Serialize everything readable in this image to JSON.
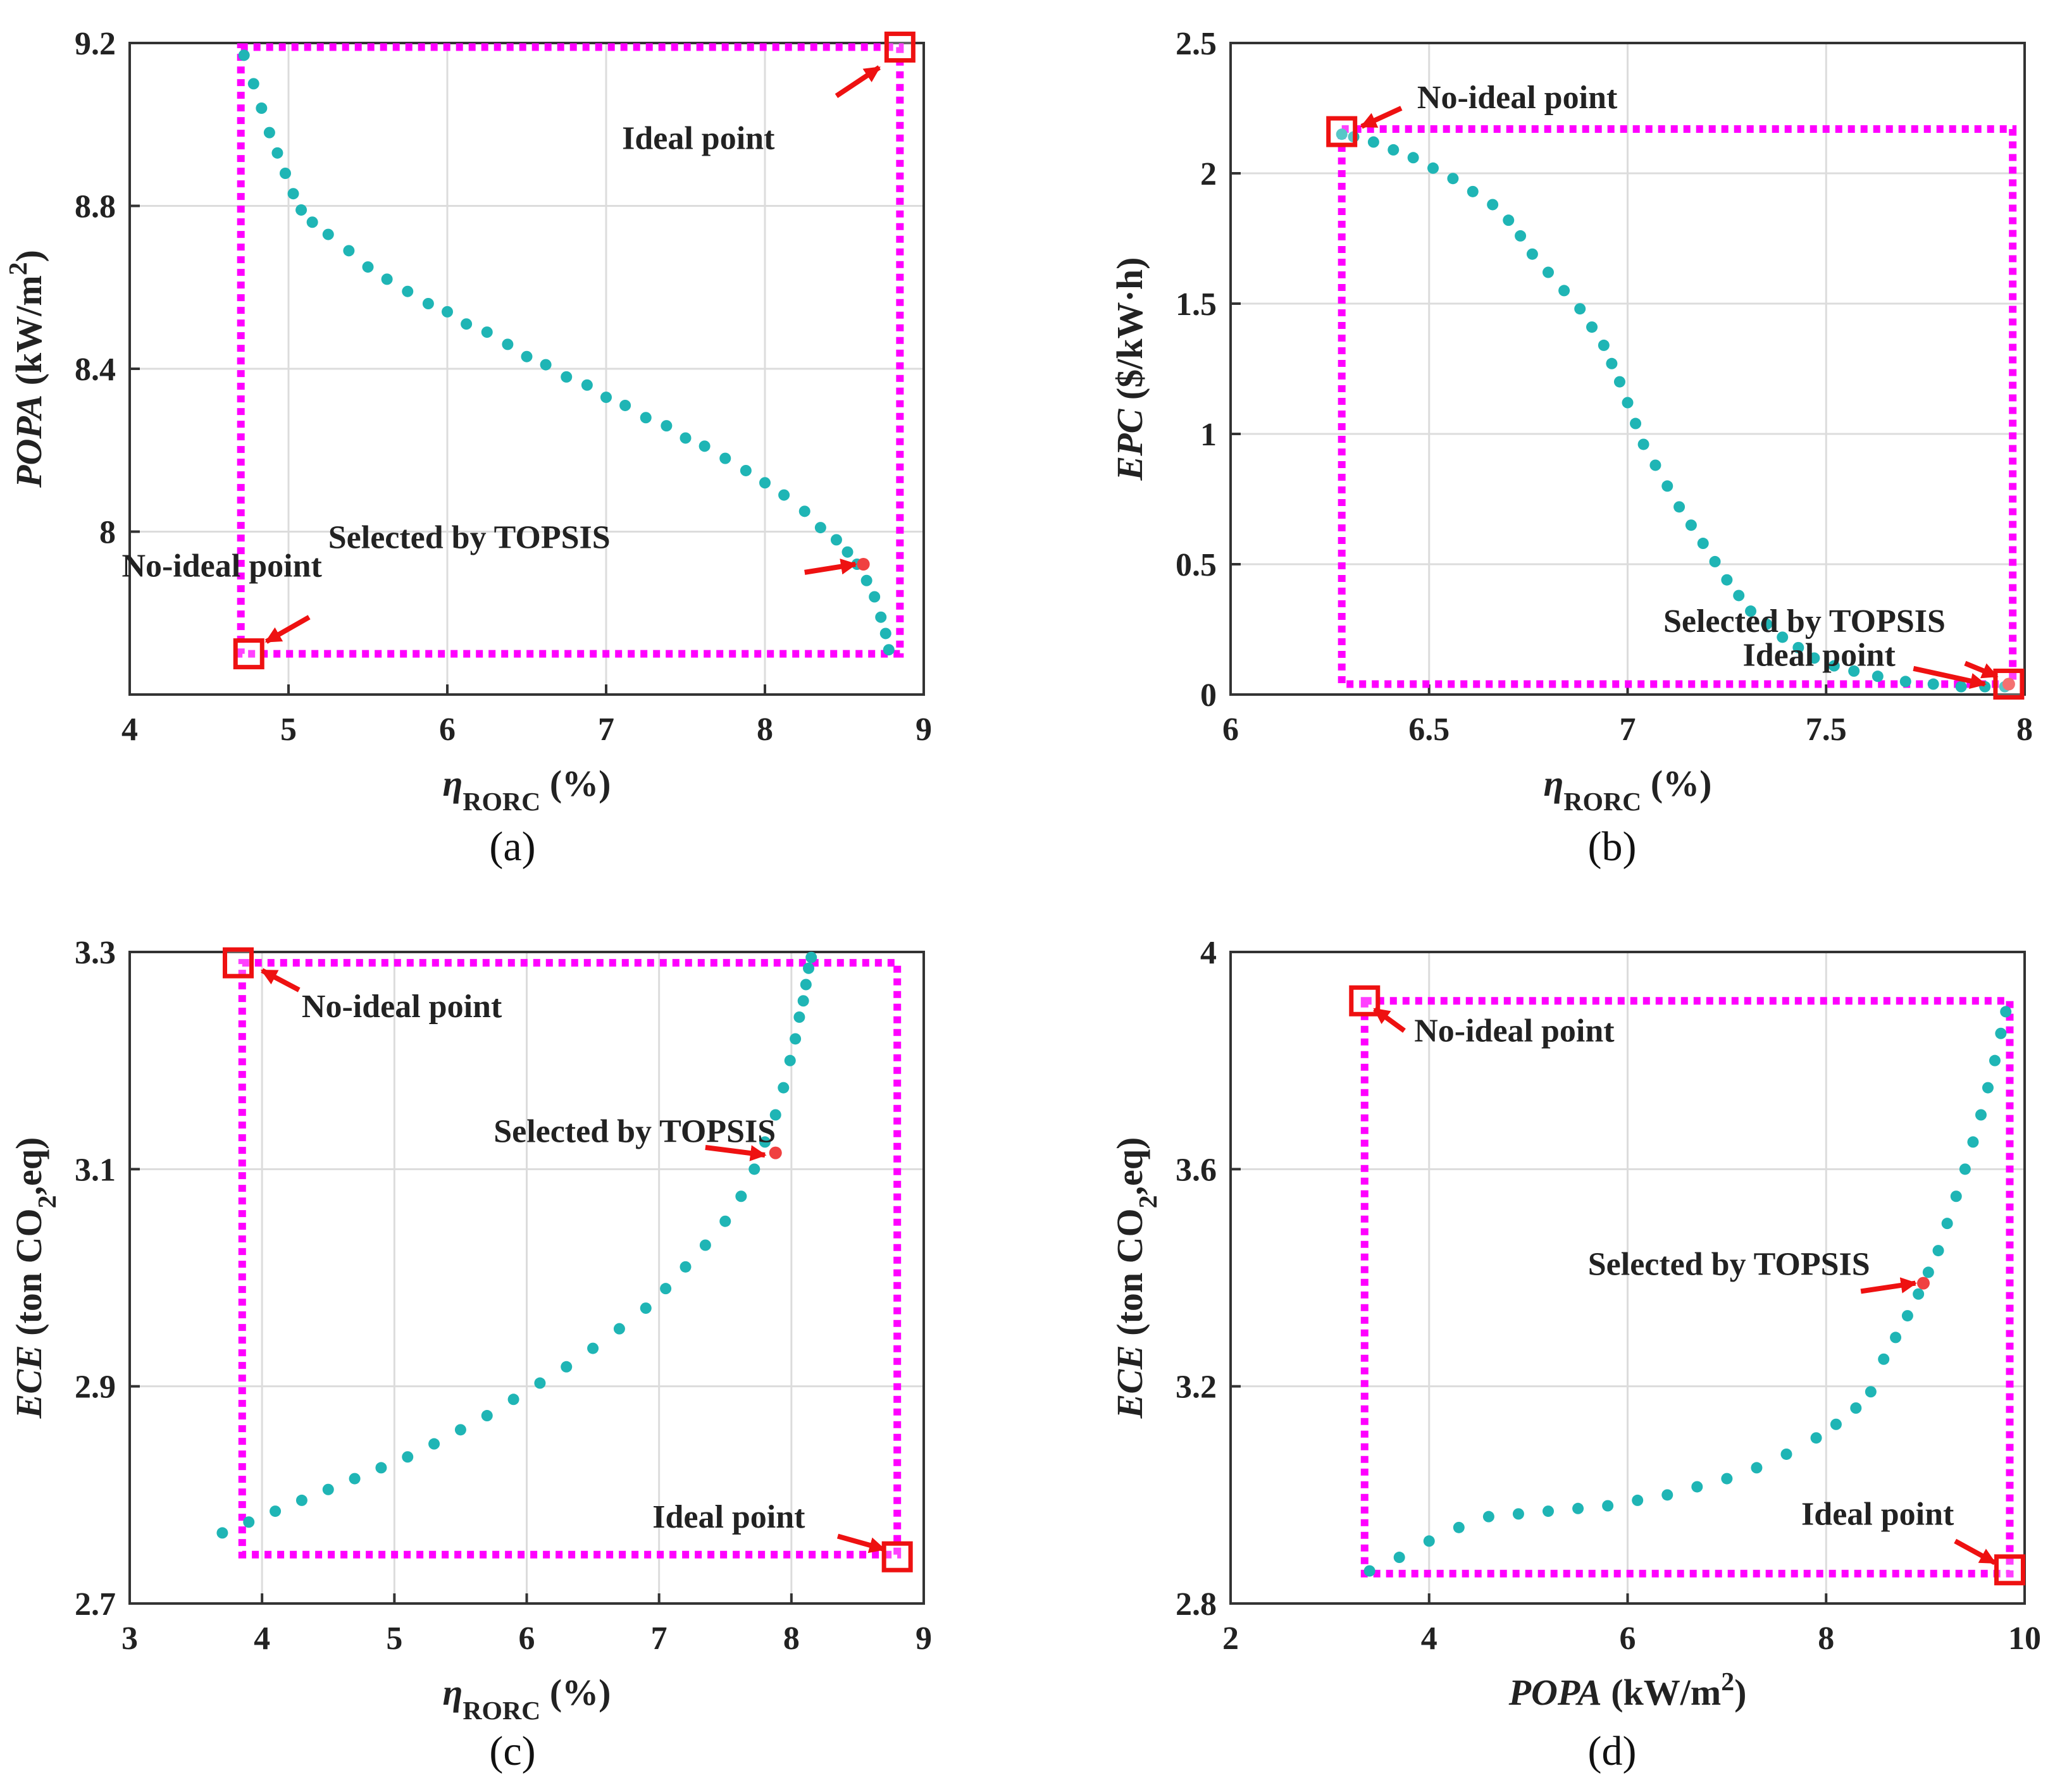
{
  "chart_data": [
    {
      "type": "scatter",
      "panel_label": "(a)",
      "x_label": {
        "parts": [
          {
            "text": "η",
            "style": "italic"
          },
          {
            "text": "RORC",
            "style": "sub"
          },
          {
            "text": " (%)",
            "style": "normal"
          }
        ]
      },
      "y_label": {
        "parts": [
          {
            "text": "POPA",
            "style": "italic"
          },
          {
            "text": " (kW/m",
            "style": "normal"
          },
          {
            "text": "2",
            "style": "sup"
          },
          {
            "text": ")",
            "style": "normal"
          }
        ]
      },
      "xlim": [
        4,
        9
      ],
      "ylim": [
        7.6,
        9.2
      ],
      "xticks": [
        4,
        5,
        6,
        7,
        8,
        9
      ],
      "yticks": [
        8,
        8.4,
        8.8,
        9.2
      ],
      "ytick_labels": [
        "8",
        "8.4",
        "8.8",
        "9.2"
      ],
      "grid": true,
      "series": [
        {
          "color": "#1fb5b5",
          "x": [
            4.72,
            4.78,
            4.83,
            4.88,
            4.93,
            4.98,
            5.03,
            5.08,
            5.15,
            5.25,
            5.38,
            5.5,
            5.62,
            5.75,
            5.88,
            6.0,
            6.12,
            6.25,
            6.38,
            6.5,
            6.62,
            6.75,
            6.88,
            7.0,
            7.12,
            7.25,
            7.38,
            7.5,
            7.62,
            7.75,
            7.88,
            8.0,
            8.12,
            8.25,
            8.35,
            8.45,
            8.52,
            8.58,
            8.64,
            8.69,
            8.73,
            8.76,
            8.78
          ],
          "y": [
            9.17,
            9.1,
            9.04,
            8.98,
            8.93,
            8.88,
            8.83,
            8.79,
            8.76,
            8.73,
            8.69,
            8.65,
            8.62,
            8.59,
            8.56,
            8.54,
            8.51,
            8.49,
            8.46,
            8.43,
            8.41,
            8.38,
            8.36,
            8.33,
            8.31,
            8.28,
            8.26,
            8.23,
            8.21,
            8.18,
            8.15,
            8.12,
            8.09,
            8.05,
            8.01,
            7.98,
            7.95,
            7.92,
            7.88,
            7.84,
            7.79,
            7.75,
            7.71
          ]
        }
      ],
      "selected_point": {
        "x": 8.62,
        "y": 7.92,
        "color": "#f04040"
      },
      "boundary_box": {
        "x": [
          4.7,
          8.85
        ],
        "y": [
          7.7,
          9.19
        ],
        "color": "#ff00ff"
      },
      "markers": [
        {
          "name": "ideal",
          "x": 8.85,
          "y": 9.19,
          "color": "#ee1111"
        },
        {
          "name": "no-ideal",
          "x": 4.75,
          "y": 7.7,
          "color": "#ee1111"
        }
      ],
      "annotations": [
        {
          "text": "Ideal point",
          "x": 7.1,
          "y": 8.94,
          "arrow_from": [
            8.45,
            9.07
          ],
          "arrow_to": [
            8.72,
            9.14
          ]
        },
        {
          "text": "Selected by TOPSIS",
          "x": 5.25,
          "y": 7.96,
          "arrow_from": [
            8.25,
            7.9
          ],
          "arrow_to": [
            8.57,
            7.92
          ]
        },
        {
          "text": "No-ideal point",
          "x": 3.95,
          "y": 7.89,
          "arrow_from": [
            5.13,
            7.79
          ],
          "arrow_to": [
            4.86,
            7.73
          ]
        }
      ]
    },
    {
      "type": "scatter",
      "panel_label": "(b)",
      "x_label": {
        "parts": [
          {
            "text": "η",
            "style": "italic"
          },
          {
            "text": "RORC",
            "style": "sub"
          },
          {
            "text": " (%)",
            "style": "normal"
          }
        ]
      },
      "y_label": {
        "parts": [
          {
            "text": "EPC",
            "style": "italic"
          },
          {
            "text": " ($/kW·h)",
            "style": "normal"
          }
        ]
      },
      "xlim": [
        6,
        8
      ],
      "ylim": [
        0,
        2.5
      ],
      "xticks": [
        6,
        6.5,
        7,
        7.5,
        8
      ],
      "yticks": [
        0,
        0.5,
        1,
        1.5,
        2,
        2.5
      ],
      "ytick_labels": [
        "0",
        "0.5",
        "1",
        "1.5",
        "2",
        "2.5"
      ],
      "grid": true,
      "series": [
        {
          "color": "#1fb5b5",
          "x": [
            6.28,
            6.31,
            6.36,
            6.41,
            6.46,
            6.51,
            6.56,
            6.61,
            6.66,
            6.7,
            6.73,
            6.76,
            6.8,
            6.84,
            6.88,
            6.91,
            6.94,
            6.96,
            6.98,
            7.0,
            7.02,
            7.04,
            7.07,
            7.1,
            7.13,
            7.16,
            7.19,
            7.22,
            7.25,
            7.28,
            7.31,
            7.35,
            7.39,
            7.43,
            7.47,
            7.52,
            7.57,
            7.63,
            7.7,
            7.77,
            7.84,
            7.9,
            7.95
          ],
          "y": [
            2.15,
            2.14,
            2.12,
            2.09,
            2.06,
            2.02,
            1.98,
            1.93,
            1.88,
            1.82,
            1.76,
            1.69,
            1.62,
            1.55,
            1.48,
            1.41,
            1.34,
            1.27,
            1.2,
            1.12,
            1.04,
            0.96,
            0.88,
            0.8,
            0.72,
            0.65,
            0.58,
            0.51,
            0.44,
            0.38,
            0.32,
            0.27,
            0.22,
            0.18,
            0.14,
            0.11,
            0.09,
            0.07,
            0.05,
            0.04,
            0.03,
            0.03,
            0.03
          ]
        }
      ],
      "selected_point": {
        "x": 7.96,
        "y": 0.04,
        "color": "#f04040"
      },
      "boundary_box": {
        "x": [
          6.28,
          7.97
        ],
        "y": [
          0.04,
          2.17
        ],
        "color": "#ff00ff"
      },
      "markers": [
        {
          "name": "no-ideal",
          "x": 6.28,
          "y": 2.16,
          "color": "#ee1111"
        },
        {
          "name": "ideal",
          "x": 7.96,
          "y": 0.04,
          "color": "#ee1111"
        }
      ],
      "annotations": [
        {
          "text": "No-ideal point",
          "x": 6.47,
          "y": 2.25,
          "arrow_from": [
            6.43,
            2.25
          ],
          "arrow_to": [
            6.33,
            2.18
          ]
        },
        {
          "text": "Selected by TOPSIS",
          "x": 7.09,
          "y": 0.24,
          "arrow_from": [
            7.85,
            0.12
          ],
          "arrow_to": [
            7.93,
            0.07
          ]
        },
        {
          "text": "Ideal point",
          "x": 7.29,
          "y": 0.11,
          "arrow_from": [
            7.72,
            0.1
          ],
          "arrow_to": [
            7.9,
            0.04
          ]
        }
      ]
    },
    {
      "type": "scatter",
      "panel_label": "(c)",
      "x_label": {
        "parts": [
          {
            "text": "η",
            "style": "italic"
          },
          {
            "text": "RORC",
            "style": "sub"
          },
          {
            "text": " (%)",
            "style": "normal"
          }
        ]
      },
      "y_label": {
        "parts": [
          {
            "text": "ECE",
            "style": "italic"
          },
          {
            "text": " (ton CO",
            "style": "normal"
          },
          {
            "text": "2",
            "style": "sub"
          },
          {
            "text": ",eq)",
            "style": "normal"
          }
        ]
      },
      "xlim": [
        3,
        9
      ],
      "ylim": [
        2.7,
        3.3
      ],
      "xticks": [
        3,
        4,
        5,
        6,
        7,
        8,
        9
      ],
      "yticks": [
        2.7,
        2.9,
        3.1,
        3.3
      ],
      "ytick_labels": [
        "2.7",
        "2.9",
        "3.1",
        "3.3"
      ],
      "grid": true,
      "series": [
        {
          "color": "#1fb5b5",
          "x": [
            3.7,
            3.9,
            4.1,
            4.3,
            4.5,
            4.7,
            4.9,
            5.1,
            5.3,
            5.5,
            5.7,
            5.9,
            6.1,
            6.3,
            6.5,
            6.7,
            6.9,
            7.05,
            7.2,
            7.35,
            7.5,
            7.62,
            7.72,
            7.8,
            7.88,
            7.94,
            7.99,
            8.03,
            8.06,
            8.09,
            8.11,
            8.13,
            8.15
          ],
          "y": [
            2.765,
            2.775,
            2.785,
            2.795,
            2.805,
            2.815,
            2.825,
            2.835,
            2.847,
            2.86,
            2.873,
            2.888,
            2.903,
            2.918,
            2.935,
            2.953,
            2.972,
            2.99,
            3.01,
            3.03,
            3.052,
            3.075,
            3.1,
            3.125,
            3.15,
            3.175,
            3.2,
            3.22,
            3.24,
            3.255,
            3.27,
            3.285,
            3.295
          ]
        }
      ],
      "selected_point": {
        "x": 7.88,
        "y": 3.115,
        "color": "#f04040"
      },
      "boundary_box": {
        "x": [
          3.85,
          8.8
        ],
        "y": [
          2.745,
          3.29
        ],
        "color": "#ff00ff"
      },
      "markers": [
        {
          "name": "no-ideal",
          "x": 3.82,
          "y": 3.29,
          "color": "#ee1111"
        },
        {
          "name": "ideal",
          "x": 8.8,
          "y": 2.743,
          "color": "#ee1111"
        }
      ],
      "annotations": [
        {
          "text": "No-ideal point",
          "x": 4.3,
          "y": 3.24,
          "arrow_from": [
            4.28,
            3.265
          ],
          "arrow_to": [
            4.0,
            3.283
          ]
        },
        {
          "text": "Selected by TOPSIS",
          "x": 5.75,
          "y": 3.125,
          "arrow_from": [
            7.35,
            3.12
          ],
          "arrow_to": [
            7.8,
            3.113
          ]
        },
        {
          "text": "Ideal point",
          "x": 6.95,
          "y": 2.77,
          "arrow_from": [
            8.35,
            2.762
          ],
          "arrow_to": [
            8.7,
            2.75
          ]
        }
      ]
    },
    {
      "type": "scatter",
      "panel_label": "(d)",
      "x_label": {
        "parts": [
          {
            "text": "POPA",
            "style": "italic"
          },
          {
            "text": " (kW/m",
            "style": "normal"
          },
          {
            "text": "2",
            "style": "sup"
          },
          {
            "text": ")",
            "style": "normal"
          }
        ]
      },
      "y_label": {
        "parts": [
          {
            "text": "ECE",
            "style": "italic"
          },
          {
            "text": " (ton CO",
            "style": "normal"
          },
          {
            "text": "2",
            "style": "sub"
          },
          {
            "text": ",eq)",
            "style": "normal"
          }
        ]
      },
      "xlim": [
        2,
        10
      ],
      "ylim": [
        2.8,
        4.0
      ],
      "xticks": [
        2,
        4,
        6,
        8,
        10
      ],
      "yticks": [
        2.8,
        3.2,
        3.6,
        4.0
      ],
      "ytick_labels": [
        "2.8",
        "3.2",
        "3.6",
        "4"
      ],
      "grid": true,
      "series": [
        {
          "color": "#1fb5b5",
          "x": [
            3.4,
            3.7,
            4.0,
            4.3,
            4.6,
            4.9,
            5.2,
            5.5,
            5.8,
            6.1,
            6.4,
            6.7,
            7.0,
            7.3,
            7.6,
            7.9,
            8.1,
            8.3,
            8.45,
            8.58,
            8.7,
            8.82,
            8.93,
            9.03,
            9.13,
            9.22,
            9.31,
            9.4,
            9.48,
            9.56,
            9.63,
            9.7,
            9.76,
            9.81
          ],
          "y": [
            2.86,
            2.885,
            2.915,
            2.94,
            2.96,
            2.965,
            2.97,
            2.975,
            2.98,
            2.99,
            3.0,
            3.015,
            3.03,
            3.05,
            3.075,
            3.105,
            3.13,
            3.16,
            3.19,
            3.25,
            3.29,
            3.33,
            3.37,
            3.41,
            3.45,
            3.5,
            3.55,
            3.6,
            3.65,
            3.7,
            3.75,
            3.8,
            3.85,
            3.89
          ]
        }
      ],
      "selected_point": {
        "x": 8.98,
        "y": 3.39,
        "color": "#f04040"
      },
      "boundary_box": {
        "x": [
          3.35,
          9.85
        ],
        "y": [
          2.855,
          3.91
        ],
        "color": "#ff00ff"
      },
      "markers": [
        {
          "name": "no-ideal",
          "x": 3.35,
          "y": 3.91,
          "color": "#ee1111"
        },
        {
          "name": "ideal",
          "x": 9.85,
          "y": 2.862,
          "color": "#ee1111"
        }
      ],
      "annotations": [
        {
          "text": "No-ideal point",
          "x": 3.85,
          "y": 3.835,
          "arrow_from": [
            3.75,
            3.855
          ],
          "arrow_to": [
            3.45,
            3.895
          ]
        },
        {
          "text": "Selected by TOPSIS",
          "x": 5.6,
          "y": 3.405,
          "arrow_from": [
            8.35,
            3.375
          ],
          "arrow_to": [
            8.9,
            3.39
          ]
        },
        {
          "text": "Ideal point",
          "x": 7.75,
          "y": 2.945,
          "arrow_from": [
            9.3,
            2.915
          ],
          "arrow_to": [
            9.7,
            2.875
          ]
        }
      ]
    }
  ]
}
